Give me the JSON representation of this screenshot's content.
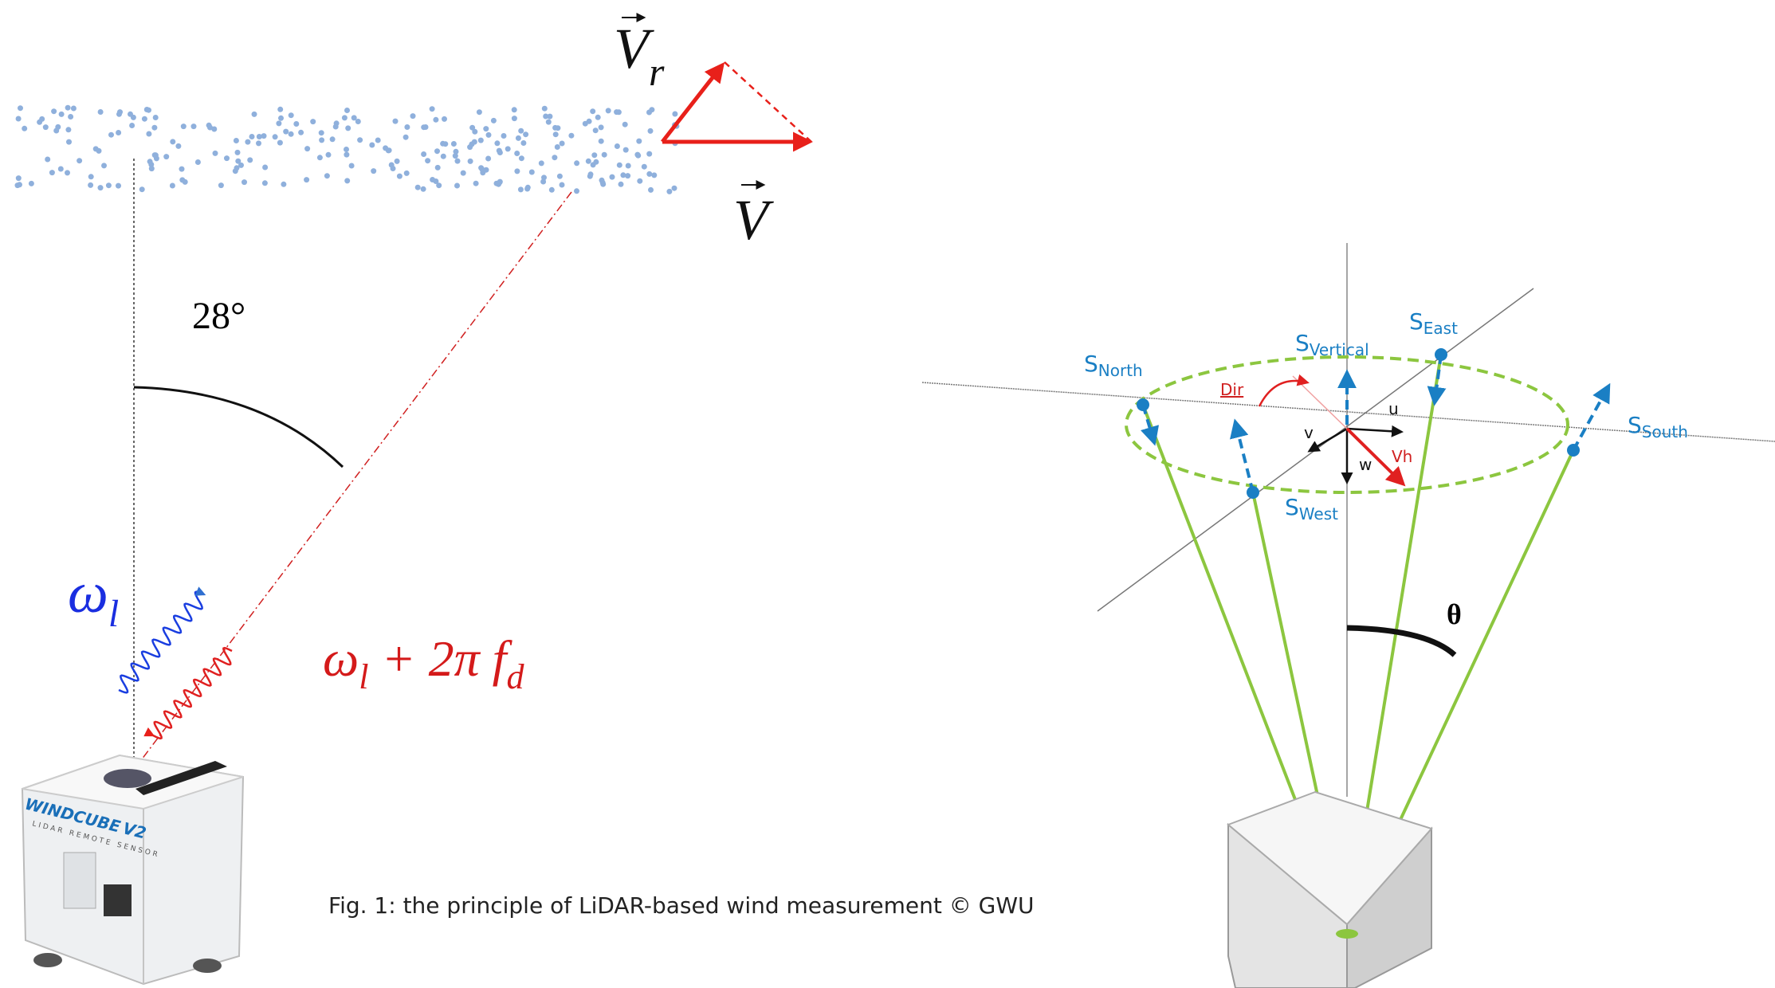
{
  "left": {
    "vr_label": {
      "base": "V",
      "sub": "r"
    },
    "v_label": "V",
    "angle_label": "28°",
    "omega_label": {
      "base": "ω",
      "sub": "l"
    },
    "shift_label": {
      "base": "ω",
      "sub": "l",
      "mid": " + 2π f",
      "sub2": "d"
    },
    "device": {
      "brand": "WINDCUBE",
      "model": "V2",
      "tagline": "LIDAR REMOTE SENSOR"
    }
  },
  "caption": "Fig. 1: the principle of LiDAR-based wind measurement © GWU",
  "right": {
    "beams": [
      {
        "base": "S",
        "sub": "North"
      },
      {
        "base": "S",
        "sub": "Vertical"
      },
      {
        "base": "S",
        "sub": "East"
      },
      {
        "base": "S",
        "sub": "South"
      },
      {
        "base": "S",
        "sub": "West"
      }
    ],
    "dir_label": "Dir",
    "u_label": "u",
    "v_label": "v",
    "w_label": "w",
    "vh_label": "Vh",
    "theta_label": "θ"
  }
}
